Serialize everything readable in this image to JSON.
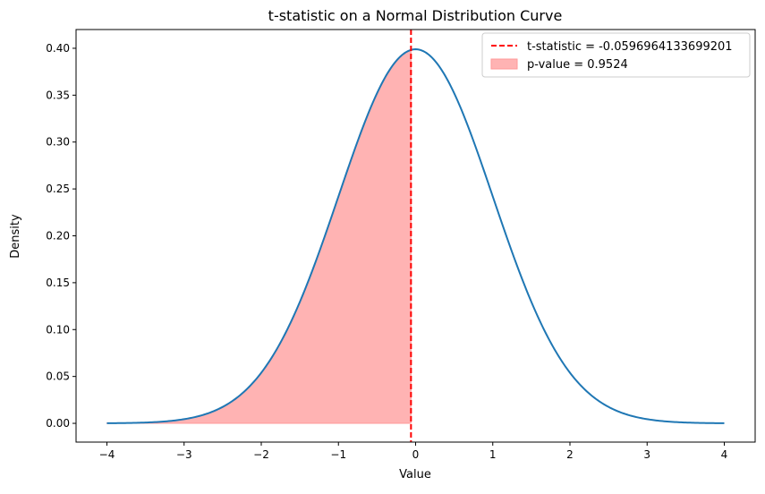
{
  "chart_data": {
    "type": "line",
    "title": "t-statistic on a Normal Distribution Curve",
    "xlabel": "Value",
    "ylabel": "Density",
    "xlim": [
      -4.4,
      4.4
    ],
    "ylim": [
      -0.02,
      0.42
    ],
    "xticks": [
      -4,
      -3,
      -2,
      -1,
      0,
      1,
      2,
      3,
      4
    ],
    "xtick_labels": [
      "−4",
      "−3",
      "−2",
      "−1",
      "0",
      "1",
      "2",
      "3",
      "4"
    ],
    "yticks": [
      0.0,
      0.05,
      0.1,
      0.15,
      0.2,
      0.25,
      0.3,
      0.35,
      0.4
    ],
    "ytick_labels": [
      "0.00",
      "0.05",
      "0.10",
      "0.15",
      "0.20",
      "0.25",
      "0.30",
      "0.35",
      "0.40"
    ],
    "grid": false,
    "legend_position": "top-right",
    "curve": {
      "mean": 0,
      "std": 1,
      "x_range": [
        -4,
        4
      ],
      "color": "#1f77b4"
    },
    "t_statistic": {
      "value": -0.0596964133699201,
      "label": "t-statistic = -0.0596964133699201",
      "color": "#ff0000",
      "style": "dashed"
    },
    "shaded_region": {
      "x_range": [
        -4,
        -0.0596964133699201
      ],
      "label": "p-value = 0.9524",
      "color": "#ff9999"
    }
  }
}
